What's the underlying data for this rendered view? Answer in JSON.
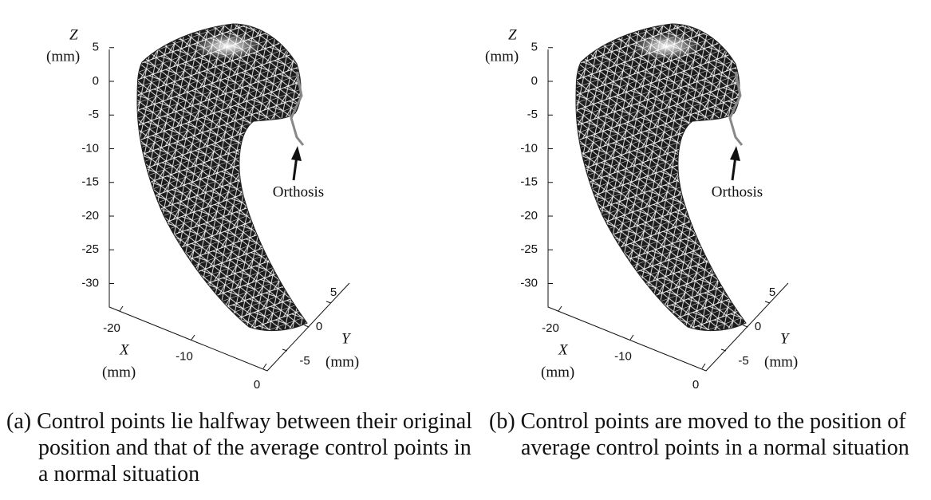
{
  "panels": [
    {
      "z_label": "Z",
      "z_unit": "(mm)",
      "zticks": [
        5,
        0,
        -5,
        -10,
        -15,
        -20,
        -25,
        -30
      ],
      "x_label": "X",
      "x_unit": "(mm)",
      "xticks": [
        -20,
        -10,
        0
      ],
      "y_label": "Y",
      "y_unit": "(mm)",
      "yticks": [
        -5,
        0,
        5
      ],
      "annotation": "Orthosis",
      "caption": "(a) Control points lie halfway between their original position and that of the average control points in a normal situation"
    },
    {
      "z_label": "Z",
      "z_unit": "(mm)",
      "zticks": [
        5,
        0,
        -5,
        -10,
        -15,
        -20,
        -25,
        -30
      ],
      "x_label": "X",
      "x_unit": "(mm)",
      "xticks": [
        -20,
        -10,
        0
      ],
      "y_label": "Y",
      "y_unit": "(mm)",
      "yticks": [
        -5,
        0,
        5
      ],
      "annotation": "Orthosis",
      "caption": "(b) Control points are moved to the position of average control points in a normal situation"
    }
  ]
}
